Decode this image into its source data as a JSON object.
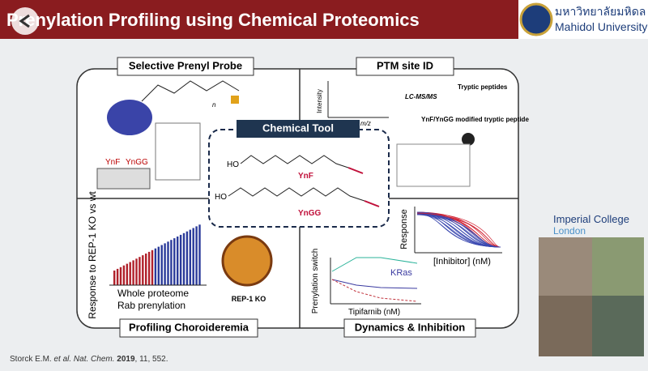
{
  "header": {
    "title": "Prenylation Profiling using Chemical Proteomics",
    "logo_thai": "มหาวิทยาลัยมหิดล",
    "logo_en": "Mahidol University"
  },
  "panels": {
    "probe": {
      "label": "Selective Prenyl Probe",
      "n": "n",
      "gel_a": "YnF",
      "gel_b": "YnGG"
    },
    "ptm": {
      "label": "PTM site ID",
      "y_axis": "Intensity",
      "x_axis": "m/z",
      "method": "LC-MS/MS",
      "peptides": "Tryptic peptides",
      "modified": "YnF/YnGG modified tryptic peptide"
    },
    "tool": {
      "label": "Chemical Tool",
      "ho_a": "HO",
      "name_a": "YnF",
      "ho_b": "HO",
      "name_b": "YnGG"
    },
    "choroideremia": {
      "label": "Profiling Choroideremia",
      "y_axis": "Response to REP-1 KO vs wt",
      "legend_a": "Whole proteome",
      "legend_b": "Rab prenylation",
      "image_caption": "REP-1 KO"
    },
    "dynamics": {
      "label": "Dynamics & Inhibition",
      "y_axis_a": "Response",
      "x_axis_a": "[Inhibitor] (nM)",
      "y_axis_b": "Prenylation switch",
      "series": "KRas",
      "x_axis_b": "Tipifarnib (nM)"
    }
  },
  "sidebar": {
    "institution_a": "Imperial College",
    "institution_b": "London"
  },
  "citation": {
    "authors": "Storck E.M. ",
    "etal": "et al. Nat. Chem.",
    "year": " 2019",
    "rest": ", 11, 552."
  }
}
